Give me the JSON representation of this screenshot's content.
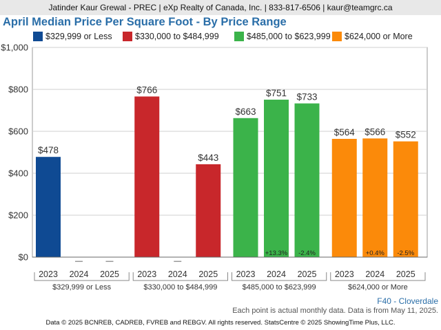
{
  "header": {
    "agent_info": "Jatinder Kaur Grewal - PREC | eXp Realty of Canada, Inc. | 833-817-6506 | kaur@teamgrc.ca"
  },
  "colors": {
    "range_1": "#0f4a93",
    "range_2": "#c8272b",
    "range_3": "#3bb34a",
    "range_4": "#fb8a0a",
    "title": "#2a6ea8"
  },
  "footer": {
    "region": "F40 - Cloverdale",
    "note": "Each point is actual monthly data. Data is from May 11, 2025.",
    "copyright": "Data © 2025 BCNREB, CADREB, FVREB and REBGV. All rights reserved. StatsCentre © 2025 ShowingTime Plus, LLC."
  },
  "chart_data": {
    "type": "bar",
    "title": "April Median Price Per Square Foot - By Price Range",
    "xlabel": "",
    "ylabel": "",
    "ylim": [
      0,
      1000
    ],
    "y_ticks": [
      "$0",
      "$200",
      "$400",
      "$600",
      "$800",
      "$1,000"
    ],
    "grid": true,
    "legend_position": "top",
    "years": [
      "2023",
      "2024",
      "2025"
    ],
    "series": [
      {
        "name": "$329,999 or Less",
        "group_label": "$329,999 or Less",
        "values": [
          478,
          null,
          null
        ],
        "value_labels": [
          "$478",
          "—",
          "—"
        ],
        "pct_labels": [
          "",
          "",
          ""
        ]
      },
      {
        "name": "$330,000 to $484,999",
        "group_label": "$330,000 to $484,999",
        "values": [
          766,
          null,
          443
        ],
        "value_labels": [
          "$766",
          "—",
          "$443"
        ],
        "pct_labels": [
          "",
          "",
          ""
        ]
      },
      {
        "name": "$485,000 to $623,999",
        "group_label": "$485,000 to $623,999",
        "values": [
          663,
          751,
          733
        ],
        "value_labels": [
          "$663",
          "$751",
          "$733"
        ],
        "pct_labels": [
          "",
          "+13.3%",
          "-2.4%"
        ]
      },
      {
        "name": "$624,000 or More",
        "group_label": "$624,000 or More",
        "values": [
          564,
          566,
          552
        ],
        "value_labels": [
          "$564",
          "$566",
          "$552"
        ],
        "pct_labels": [
          "",
          "+0.4%",
          "-2.5%"
        ]
      }
    ]
  }
}
